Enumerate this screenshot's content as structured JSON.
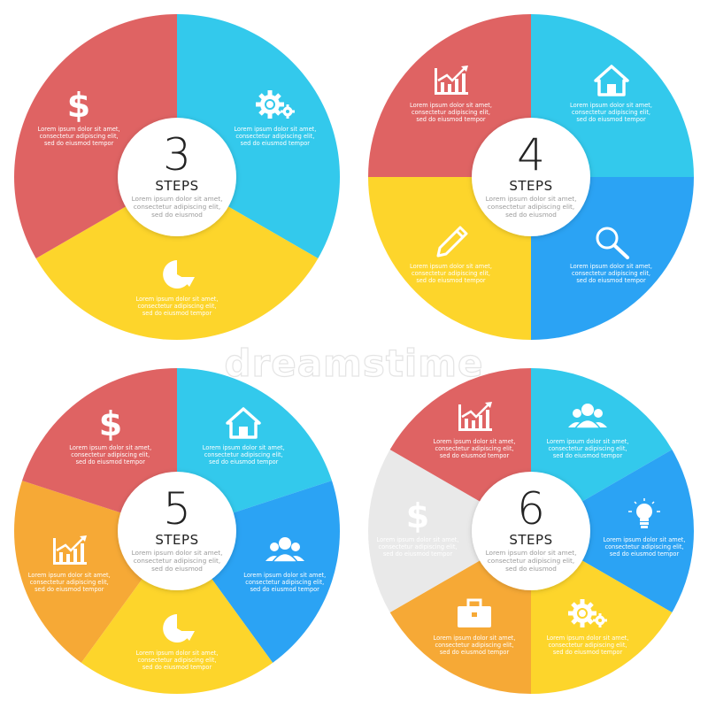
{
  "watermark": "dreamstime",
  "colors": {
    "red": "#df6363",
    "cyan": "#33c9ec",
    "blue": "#2ba3f4",
    "yellow": "#fdd52b",
    "orange": "#f6a936",
    "gray": "#e9e9e9"
  },
  "diagrams": [
    {
      "number": "3",
      "steps_label": "STEPS",
      "center_text": "Lorem ipsum dolor sit amet, consectetur adipiscing elit, sed do eiusmod",
      "segments": [
        {
          "color": "cyan",
          "icon": "gear-icon",
          "text": "Lorem ipsum dolor sit amet, consectetur adipiscing elit, sed do eiusmod tempor"
        },
        {
          "color": "yellow",
          "icon": "pie-chart-icon",
          "text": "Lorem ipsum dolor sit amet, consectetur adipiscing elit, sed do eiusmod tempor"
        },
        {
          "color": "red",
          "icon": "dollar-icon",
          "text": "Lorem ipsum dolor sit amet, consectetur adipiscing elit, sed do eiusmod tempor"
        }
      ]
    },
    {
      "number": "4",
      "steps_label": "STEPS",
      "center_text": "Lorem ipsum dolor sit amet, consectetur adipiscing elit, sed do eiusmod",
      "segments": [
        {
          "color": "cyan",
          "icon": "home-icon",
          "text": "Lorem ipsum dolor sit amet, consectetur adipiscing elit, sed do eiusmod tempor"
        },
        {
          "color": "blue",
          "icon": "search-icon",
          "text": "Lorem ipsum dolor sit amet, consectetur adipiscing elit, sed do eiusmod tempor"
        },
        {
          "color": "yellow",
          "icon": "pencil-icon",
          "text": "Lorem ipsum dolor sit amet, consectetur adipiscing elit, sed do eiusmod tempor"
        },
        {
          "color": "red",
          "icon": "growth-chart-icon",
          "text": "Lorem ipsum dolor sit amet, consectetur adipiscing elit, sed do eiusmod tempor"
        }
      ]
    },
    {
      "number": "5",
      "steps_label": "STEPS",
      "center_text": "Lorem ipsum dolor sit amet, consectetur adipiscing elit, sed do eiusmod",
      "segments": [
        {
          "color": "cyan",
          "icon": "home-icon",
          "text": "Lorem ipsum dolor sit amet, consectetur adipiscing elit, sed do eiusmod tempor"
        },
        {
          "color": "blue",
          "icon": "people-icon",
          "text": "Lorem ipsum dolor sit amet, consectetur adipiscing elit, sed do eiusmod tempor"
        },
        {
          "color": "yellow",
          "icon": "pie-chart-icon",
          "text": "Lorem ipsum dolor sit amet, consectetur adipiscing elit, sed do eiusmod tempor"
        },
        {
          "color": "orange",
          "icon": "growth-chart-icon",
          "text": "Lorem ipsum dolor sit amet, consectetur adipiscing elit, sed do eiusmod tempor"
        },
        {
          "color": "red",
          "icon": "dollar-icon",
          "text": "Lorem ipsum dolor sit amet, consectetur adipiscing elit, sed do eiusmod tempor"
        }
      ]
    },
    {
      "number": "6",
      "steps_label": "STEPS",
      "center_text": "Lorem ipsum dolor sit amet, consectetur adipiscing elit, sed do eiusmod",
      "segments": [
        {
          "color": "cyan",
          "icon": "people-icon",
          "text": "Lorem ipsum dolor sit amet, consectetur adipiscing elit, sed do eiusmod tempor"
        },
        {
          "color": "blue",
          "icon": "lightbulb-icon",
          "text": "Lorem ipsum dolor sit amet, consectetur adipiscing elit, sed do eiusmod tempor"
        },
        {
          "color": "yellow",
          "icon": "gear-icon",
          "text": "Lorem ipsum dolor sit amet, consectetur adipiscing elit, sed do eiusmod tempor"
        },
        {
          "color": "orange",
          "icon": "briefcase-icon",
          "text": "Lorem ipsum dolor sit amet, consectetur adipiscing elit, sed do eiusmod tempor"
        },
        {
          "color": "gray",
          "icon": "dollar-icon",
          "text": "Lorem ipsum dolor sit amet, consectetur adipiscing elit, sed do eiusmod tempor"
        },
        {
          "color": "red",
          "icon": "growth-chart-icon",
          "text": "Lorem ipsum dolor sit amet, consectetur adipiscing elit, sed do eiusmod tempor"
        }
      ]
    }
  ]
}
